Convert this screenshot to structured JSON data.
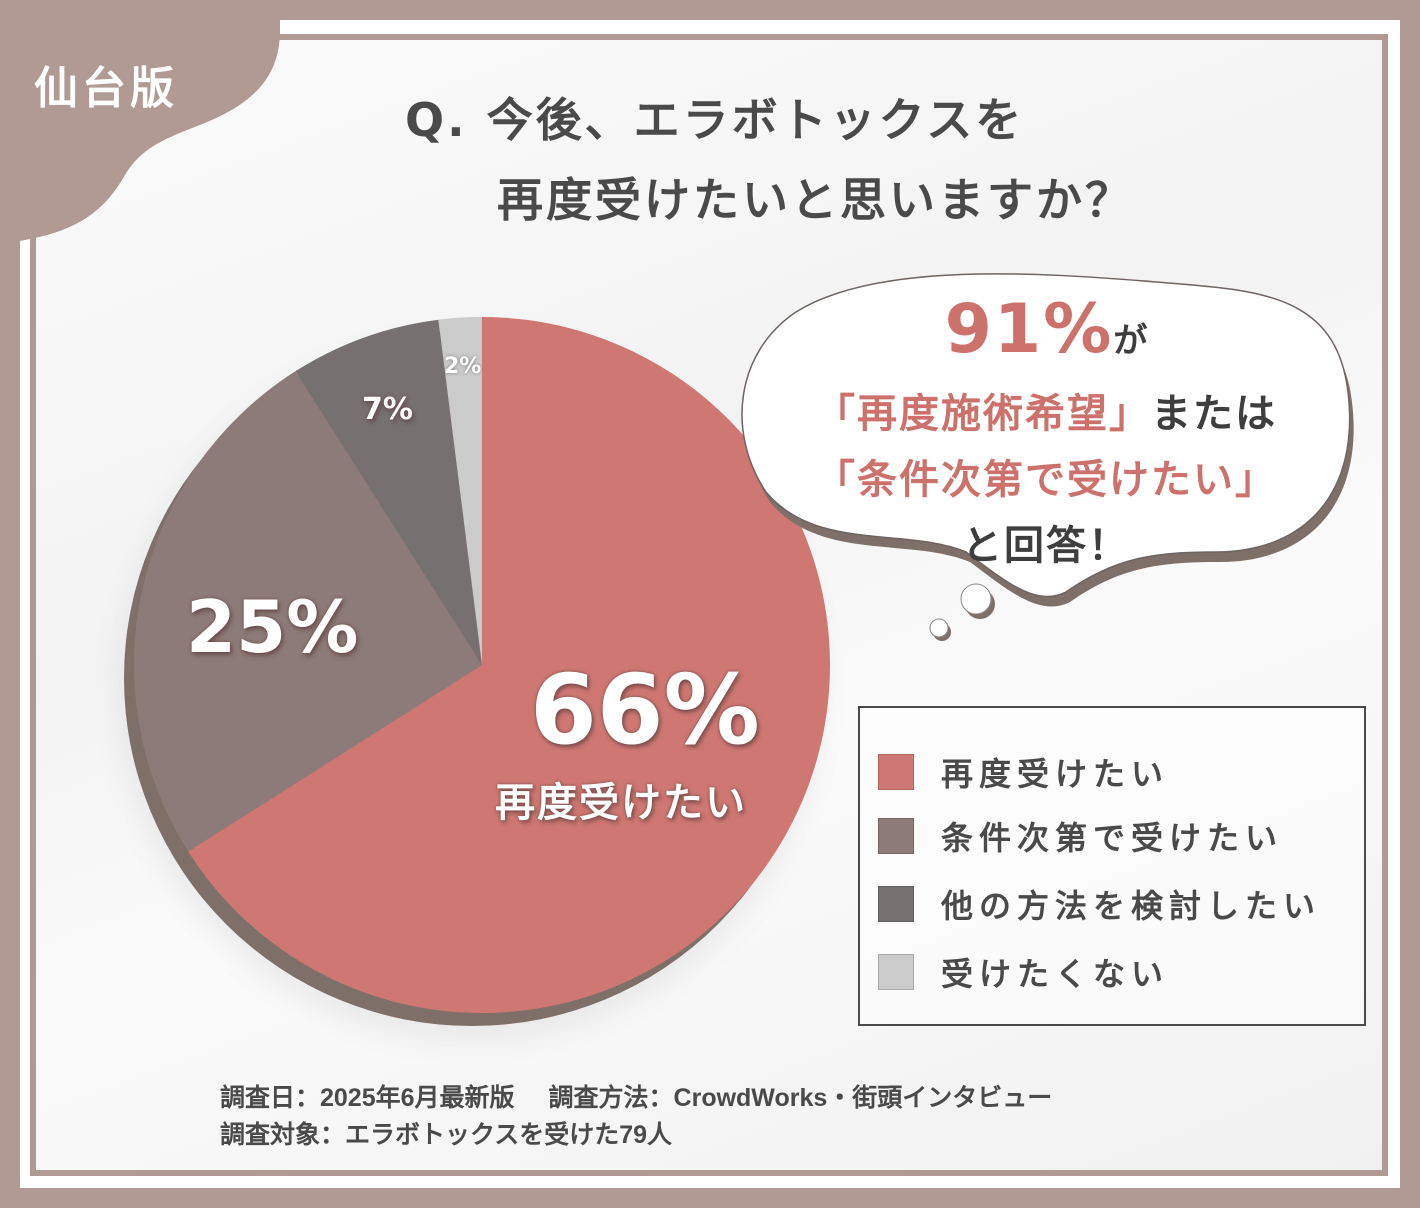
{
  "badge": {
    "region": "仙台版"
  },
  "title": {
    "line1": "Q. 今後、エラボトックスを",
    "line2": "再度受けたいと思いますか？"
  },
  "callout": {
    "highlight_value": "91%",
    "line1_suffix": "が",
    "line2_quote": "「再度施術希望」",
    "line2_suffix": "または",
    "line3_quote": "「条件次第で受けたい」",
    "line4": "と回答！"
  },
  "labels": {
    "slice_0_value": "66%",
    "slice_0_name": "再度受けたい",
    "slice_1_value": "25%",
    "slice_2_value": "7%",
    "slice_3_value": "2%"
  },
  "legend": {
    "items": [
      {
        "label": "再度受けたい",
        "color": "#cf7873"
      },
      {
        "label": "条件次第で受けたい",
        "color": "#8c7b78"
      },
      {
        "label": "他の方法を検討したい",
        "color": "#767170"
      },
      {
        "label": "受けたくない",
        "color": "#cbcbcb"
      }
    ]
  },
  "footnote": {
    "date": "調査日：2025年6月最新版",
    "method": "調査方法：CrowdWorks・街頭インタビュー",
    "target": "調査対象：エラボトックスを受けた79人"
  },
  "colors": {
    "frame": "#b09a93",
    "accent": "#cd716d",
    "text": "#4a4a4a",
    "pie_rim": "#7f6f69"
  },
  "chart_data": {
    "type": "pie",
    "title": "Q. 今後、エラボトックスを再度受けたいと思いますか？",
    "categories": [
      "再度受けたい",
      "条件次第で受けたい",
      "他の方法を検討したい",
      "受けたくない"
    ],
    "values": [
      66,
      25,
      7,
      2
    ],
    "unit": "%",
    "colors": [
      "#cf7873",
      "#8c7b78",
      "#767170",
      "#cbcbcb"
    ],
    "start_angle": "12 o'clock",
    "direction": "clockwise",
    "legend_position": "right-bottom",
    "annotation": "91%が「再度施術希望」または「条件次第で受けたい」と回答！",
    "sample_size": 79
  }
}
